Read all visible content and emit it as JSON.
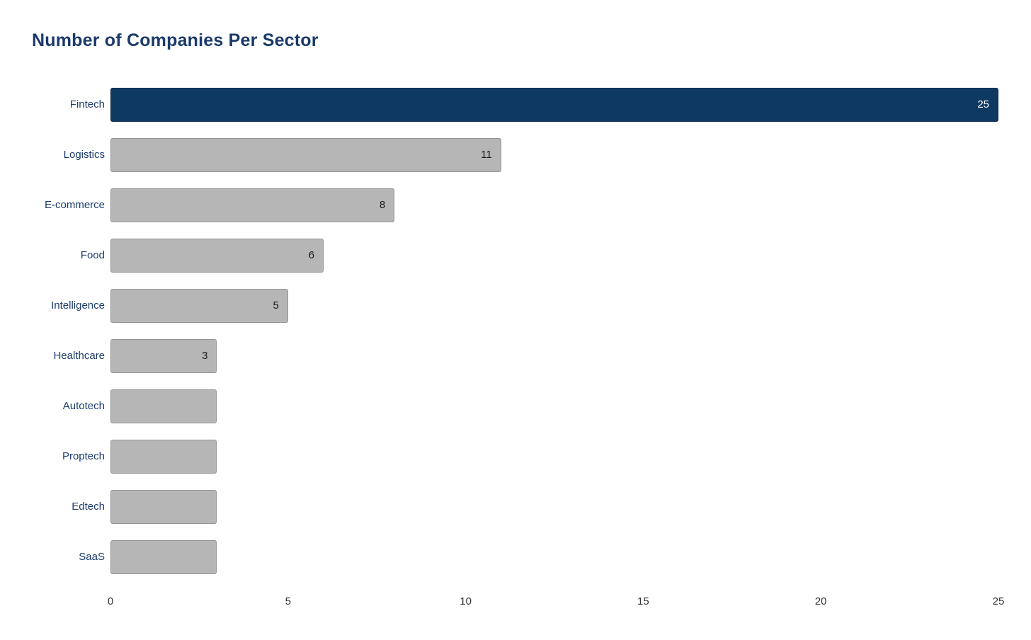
{
  "page": {
    "background": "#ffffff"
  },
  "colors": {
    "title": "#1b3a6b",
    "bar_highlight": "#0e3a62",
    "bar_default": "#b6b6b6",
    "category_label": "#1c3c6e",
    "value_label_dark": "#1a1a1a",
    "value_label_light": "#ffffff",
    "tick_label": "#333333"
  },
  "chart_data": {
    "type": "bar",
    "orientation": "horizontal",
    "title": "Number of Companies Per Sector",
    "xlabel": "",
    "ylabel": "",
    "categories": [
      "Fintech",
      "Logistics",
      "E-commerce",
      "Food",
      "Intelligence",
      "Healthcare",
      "Autotech",
      "Proptech",
      "Edtech",
      "SaaS"
    ],
    "values": [
      25,
      11,
      8,
      6,
      5,
      3,
      3,
      3,
      3,
      3
    ],
    "value_labels": [
      "25",
      "11",
      "8",
      "6",
      "5",
      "3",
      "",
      "",
      "",
      ""
    ],
    "highlighted_category": "Fintech",
    "xlim": [
      0,
      25
    ],
    "x_ticks": [
      0,
      5,
      10,
      15,
      20,
      25
    ],
    "grid": false,
    "legend": false,
    "bar_sorted_descending": true
  }
}
